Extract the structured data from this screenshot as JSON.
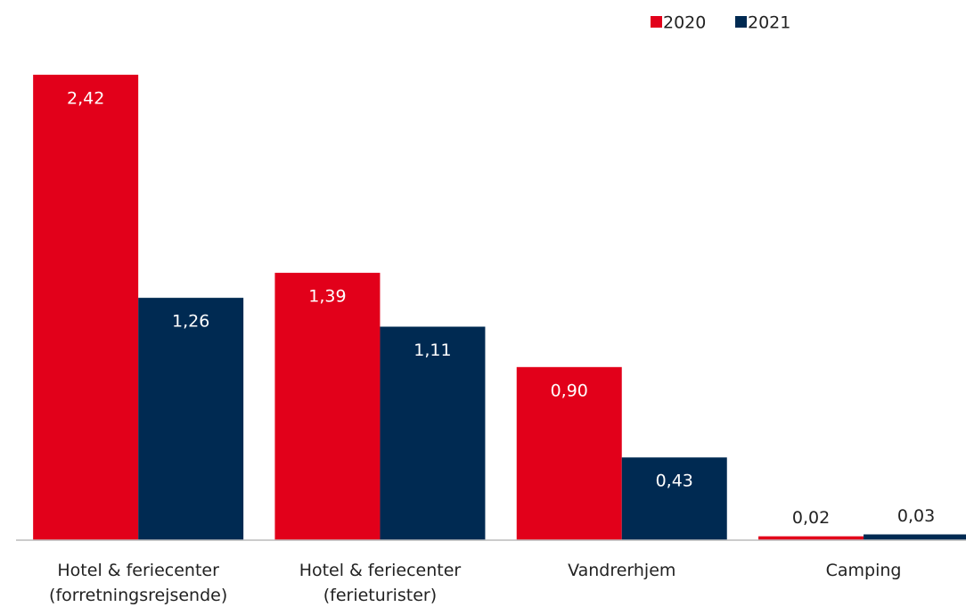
{
  "chart_data": {
    "type": "bar",
    "categories": [
      [
        "Hotel & feriecenter",
        "(forretningsrejsende)"
      ],
      [
        "Hotel & feriecenter",
        "(ferieturister)"
      ],
      [
        "Vandrerhjem"
      ],
      [
        "Camping"
      ]
    ],
    "series": [
      {
        "name": "2020",
        "color": "#e2001a",
        "values": [
          2.42,
          1.39,
          0.9,
          0.02
        ],
        "value_labels": [
          "2,42",
          "1,39",
          "0,90",
          "0,02"
        ]
      },
      {
        "name": "2021",
        "color": "#002a52",
        "values": [
          1.26,
          1.11,
          0.43,
          0.03
        ],
        "value_labels": [
          "1,26",
          "1,11",
          "0,43",
          "0,03"
        ]
      }
    ],
    "ylim": [
      0,
      2.6
    ],
    "legend": "top-right"
  }
}
